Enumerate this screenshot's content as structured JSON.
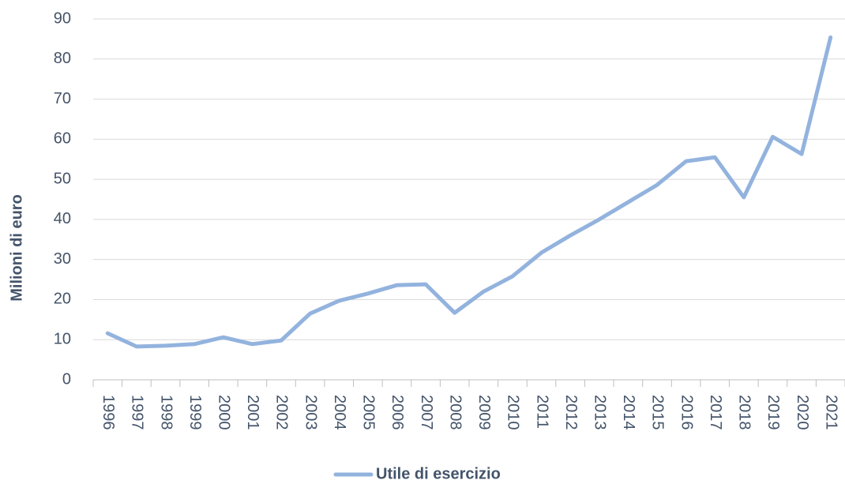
{
  "chart_data": {
    "type": "line",
    "y_label": "Milioni di euro",
    "categories": [
      "1996",
      "1997",
      "1998",
      "1999",
      "2000",
      "2001",
      "2002",
      "2003",
      "2004",
      "2005",
      "2006",
      "2007",
      "2008",
      "2009",
      "2010",
      "2011",
      "2012",
      "2013",
      "2014",
      "2015",
      "2016",
      "2017",
      "2018",
      "2019",
      "2020",
      "2021"
    ],
    "series": [
      {
        "name": "Utile di esercizio",
        "color": "#93b3de",
        "values": [
          11.6,
          8.3,
          8.5,
          8.9,
          10.6,
          8.9,
          9.8,
          16.5,
          19.7,
          21.5,
          23.6,
          23.8,
          16.7,
          22.0,
          25.8,
          31.7,
          36.0,
          40.0,
          44.3,
          48.6,
          54.5,
          55.5,
          45.5,
          60.6,
          56.3,
          85.4
        ]
      }
    ],
    "ylim": [
      0,
      90
    ],
    "yticks": [
      0,
      10,
      20,
      30,
      40,
      50,
      60,
      70,
      80,
      90
    ],
    "grid": true,
    "legend": "bottom"
  }
}
